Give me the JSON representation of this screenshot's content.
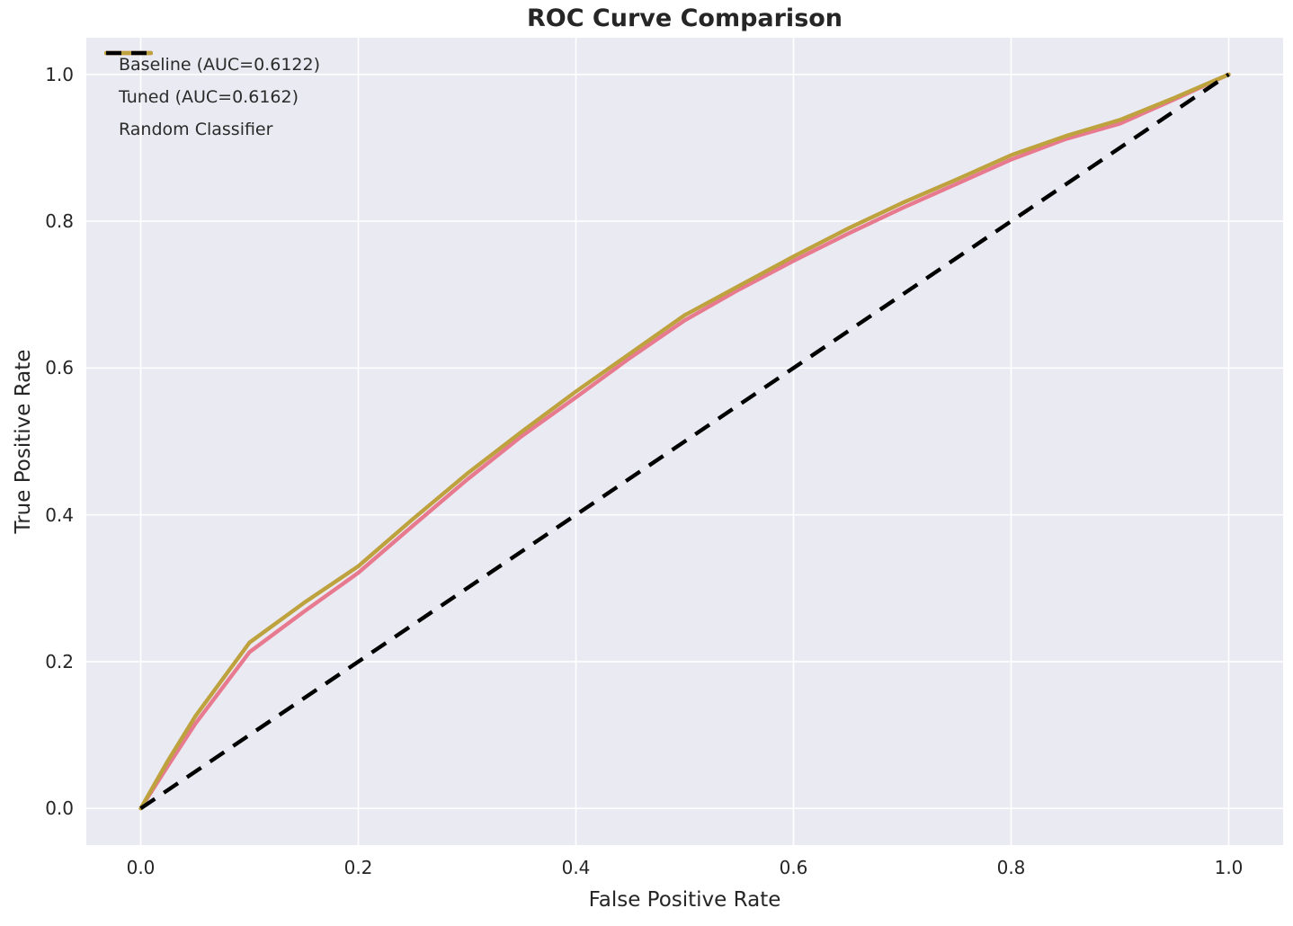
{
  "title": "ROC Curve Comparison",
  "colors": {
    "plot_background": "#eaeaf2",
    "grid": "#ffffff",
    "text": "#262626",
    "baseline": "#e87a90",
    "tuned": "#bda23d",
    "random": "#000000"
  },
  "chart_data": {
    "type": "line",
    "title": "ROC Curve Comparison",
    "xlabel": "False Positive Rate",
    "ylabel": "True Positive Rate",
    "xlim": [
      -0.05,
      1.05
    ],
    "ylim": [
      -0.05,
      1.05
    ],
    "xticks": [
      0.0,
      0.2,
      0.4,
      0.6,
      0.8,
      1.0
    ],
    "yticks": [
      0.0,
      0.2,
      0.4,
      0.6,
      0.8,
      1.0
    ],
    "grid": true,
    "legend_position": "upper left",
    "x": [
      0,
      0.025,
      0.05,
      0.1,
      0.15,
      0.2,
      0.25,
      0.3,
      0.35,
      0.4,
      0.45,
      0.5,
      0.55,
      0.6,
      0.65,
      0.7,
      0.75,
      0.8,
      0.85,
      0.9,
      0.95,
      1.0
    ],
    "series": [
      {
        "id": "baseline",
        "name": "Baseline (AUC=0.6122)",
        "auc": 0.6122,
        "color": "#e87a90",
        "style": "solid",
        "values": [
          0.0,
          0.058,
          0.115,
          0.213,
          0.268,
          0.321,
          0.385,
          0.448,
          0.507,
          0.56,
          0.614,
          0.665,
          0.707,
          0.746,
          0.783,
          0.818,
          0.851,
          0.884,
          0.912,
          0.933,
          0.966,
          1.0
        ]
      },
      {
        "id": "tuned",
        "name": "Tuned (AUC=0.6162)",
        "auc": 0.6162,
        "color": "#bda23d",
        "style": "solid",
        "values": [
          0.0,
          0.065,
          0.125,
          0.226,
          0.28,
          0.33,
          0.394,
          0.456,
          0.513,
          0.568,
          0.62,
          0.672,
          0.712,
          0.752,
          0.79,
          0.825,
          0.857,
          0.89,
          0.916,
          0.938,
          0.968,
          1.0
        ]
      },
      {
        "id": "random",
        "name": "Random Classifier",
        "color": "#000000",
        "style": "dashed",
        "x": [
          0.0,
          1.0
        ],
        "values": [
          0.0,
          1.0
        ]
      }
    ]
  }
}
